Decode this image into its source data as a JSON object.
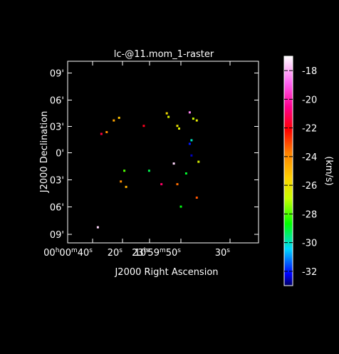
{
  "chart_data": {
    "type": "scatter",
    "title": "lc-@11.mom_1-raster",
    "xlabel": "J2000 Right Ascension",
    "ylabel": "J2000 Declination",
    "x_ticks": [
      {
        "h": "00",
        "m": "00",
        "s": "40",
        "show_hm": true
      },
      {
        "s": "20"
      },
      {
        "s": "10"
      },
      {
        "h": "23",
        "m": "59",
        "s": "50",
        "show_hm": true
      },
      {
        "s": "30"
      }
    ],
    "y_ticks": [
      "09'",
      "06'",
      "03'",
      "0'",
      "03'",
      "06'",
      "09'"
    ],
    "colorbar": {
      "label": "(km/s)",
      "min": -33,
      "max": -17,
      "ticks": [
        "-18",
        "-20",
        "-22",
        "-24",
        "-26",
        "-28",
        "-30",
        "-32"
      ]
    },
    "points": [
      {
        "ra": "00:00:28",
        "dec": "+03.6",
        "v": -24.5
      },
      {
        "ra": "00:00:25",
        "dec": "+03.9",
        "v": -25.2
      },
      {
        "ra": "00:00:35",
        "dec": "+02.1",
        "v": -21.5
      },
      {
        "ra": "00:00:32",
        "dec": "+02.3",
        "v": -24.0
      },
      {
        "ra": "00:00:11",
        "dec": "+03.0",
        "v": -21.8
      },
      {
        "ra": "23:59:58",
        "dec": "+04.4",
        "v": -25.8
      },
      {
        "ra": "23:59:57",
        "dec": "+04.0",
        "v": -26.5
      },
      {
        "ra": "23:59:52",
        "dec": "+03.0",
        "v": -26.0
      },
      {
        "ra": "23:59:51",
        "dec": "+02.7",
        "v": -26.4
      },
      {
        "ra": "23:59:43",
        "dec": "+03.8",
        "v": -26.8
      },
      {
        "ra": "23:59:41",
        "dec": "+03.6",
        "v": -26.2
      },
      {
        "ra": "23:59:45",
        "dec": "+04.5",
        "v": -18.5
      },
      {
        "ra": "23:59:44",
        "dec": "+01.4",
        "v": -30.0
      },
      {
        "ra": "23:59:45",
        "dec": "+01.0",
        "v": -32.0
      },
      {
        "ra": "23:59:44",
        "dec": "-00.3",
        "v": -32.5
      },
      {
        "ra": "23:59:40",
        "dec": "-01.0",
        "v": -26.5
      },
      {
        "ra": "00:00:22",
        "dec": "-02.0",
        "v": -28.0
      },
      {
        "ra": "00:00:24",
        "dec": "-03.2",
        "v": -24.0
      },
      {
        "ra": "00:00:21",
        "dec": "-03.8",
        "v": -24.8
      },
      {
        "ra": "23:59:52",
        "dec": "-03.5",
        "v": -23.5
      },
      {
        "ra": "23:59:54",
        "dec": "-01.2",
        "v": -17.5
      },
      {
        "ra": "23:59:50",
        "dec": "-06.0",
        "v": -28.8
      },
      {
        "ra": "00:00:08",
        "dec": "-02.0",
        "v": -29.2
      },
      {
        "ra": "23:59:47",
        "dec": "-02.3",
        "v": -29.0
      },
      {
        "ra": "00:00:37",
        "dec": "-08.3",
        "v": -17.5
      },
      {
        "ra": "23:59:41",
        "dec": "-05.0",
        "v": -23.2
      },
      {
        "ra": "00:00:01",
        "dec": "-03.5",
        "v": -21.0
      }
    ]
  }
}
